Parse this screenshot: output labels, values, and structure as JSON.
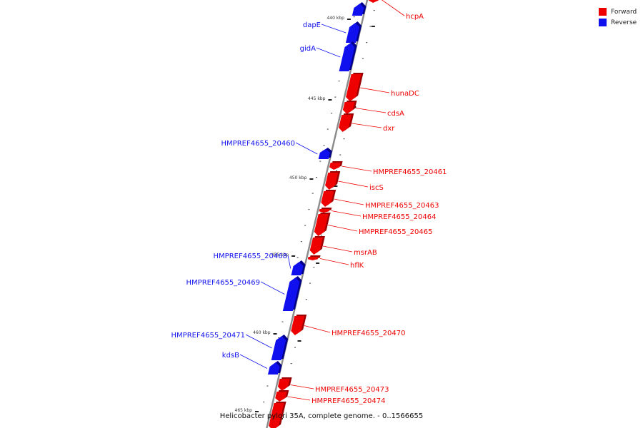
{
  "legend": [
    {
      "label": "Forward",
      "color": "#ee0000"
    },
    {
      "label": "Reverse",
      "color": "#1010ee"
    }
  ],
  "caption": "Helicobacter pylori 35A, complete genome. - 0..1566655",
  "axis_ticks": [
    "440 kbp",
    "445 kbp",
    "450 kbp",
    "455 kbp",
    "460 kbp",
    "465 kbp"
  ],
  "genes": [
    {
      "name": "hcpA",
      "strand": "forward",
      "labeled": true
    },
    {
      "name": "",
      "strand": "reverse",
      "labeled": false
    },
    {
      "name": "dapE",
      "strand": "reverse",
      "labeled": true
    },
    {
      "name": "gidA",
      "strand": "reverse",
      "labeled": true
    },
    {
      "name": "hunaDC",
      "strand": "forward",
      "labeled": true
    },
    {
      "name": "cdsA",
      "strand": "forward",
      "labeled": true
    },
    {
      "name": "dxr",
      "strand": "forward",
      "labeled": true
    },
    {
      "name": "HMPREF4655_20460",
      "strand": "reverse",
      "labeled": true
    },
    {
      "name": "HMPREF4655_20461",
      "strand": "forward",
      "labeled": true
    },
    {
      "name": "iscS",
      "strand": "forward",
      "labeled": true
    },
    {
      "name": "HMPREF4655_20463",
      "strand": "forward",
      "labeled": true
    },
    {
      "name": "HMPREF4655_20464",
      "strand": "forward",
      "labeled": true
    },
    {
      "name": "HMPREF4655_20465",
      "strand": "forward",
      "labeled": true
    },
    {
      "name": "msrAB",
      "strand": "forward",
      "labeled": true
    },
    {
      "name": "hflK",
      "strand": "forward",
      "labeled": true
    },
    {
      "name": "HMPREF4655_20468",
      "strand": "reverse",
      "labeled": true
    },
    {
      "name": "HMPREF4655_20469",
      "strand": "reverse",
      "labeled": true
    },
    {
      "name": "HMPREF4655_20470",
      "strand": "forward",
      "labeled": true
    },
    {
      "name": "HMPREF4655_20471",
      "strand": "reverse",
      "labeled": true
    },
    {
      "name": "kdsB",
      "strand": "reverse",
      "labeled": true
    },
    {
      "name": "HMPREF4655_20473",
      "strand": "forward",
      "labeled": true
    },
    {
      "name": "HMPREF4655_20474",
      "strand": "forward",
      "labeled": true
    },
    {
      "name": "",
      "strand": "forward",
      "labeled": false
    }
  ]
}
